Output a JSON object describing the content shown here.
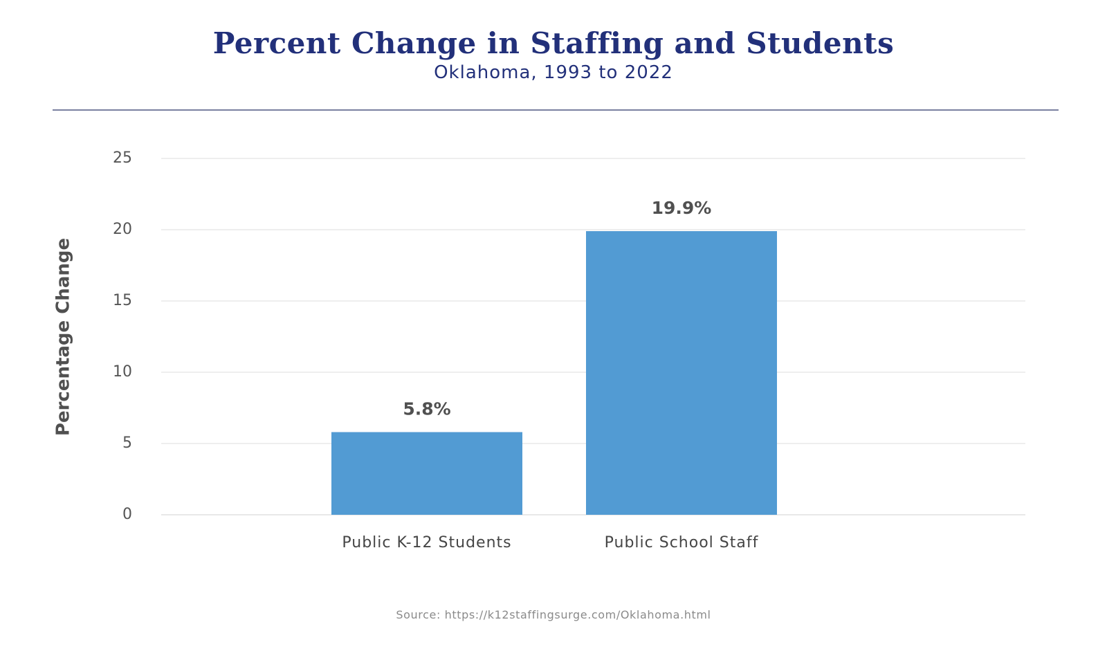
{
  "chart_data": {
    "type": "bar",
    "title": "Percent Change in Staffing and Students",
    "subtitle": "Oklahoma, 1993 to 2022",
    "ylabel": "Percentage Change",
    "xlabel": "",
    "categories": [
      "Public K-12 Students",
      "Public School Staff"
    ],
    "values": [
      5.8,
      19.9
    ],
    "data_labels": [
      "5.8%",
      "19.9%"
    ],
    "ylim": [
      0,
      25
    ],
    "yticks": [
      0,
      5,
      10,
      15,
      20,
      25
    ],
    "ytick_labels": [
      "0",
      "5",
      "10",
      "15",
      "20",
      "25"
    ],
    "grid": true,
    "legend": "none",
    "bar_color": "#529bd3"
  },
  "source": "Source: https://k12staffingsurge.com/Oklahoma.html"
}
